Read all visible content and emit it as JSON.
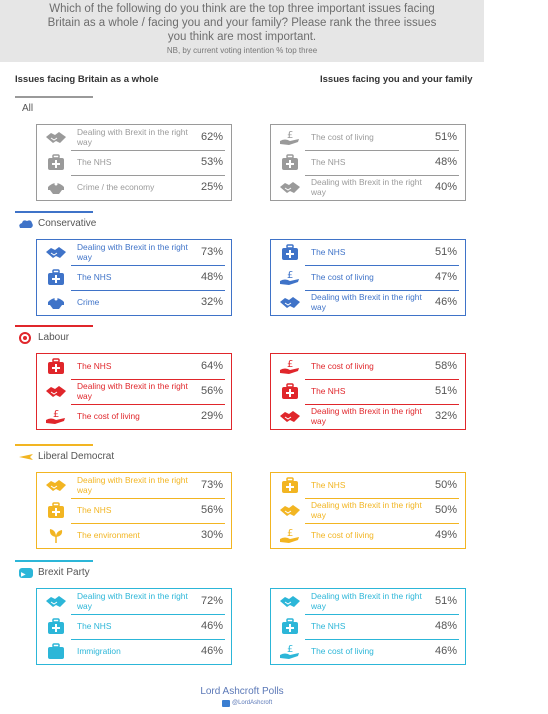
{
  "header": {
    "question_lines": [
      "Which of the following do you think are the top three important issues facing",
      "Britain as a whole / facing you and your family? Please rank the three issues",
      "you think are most important."
    ],
    "note": "NB, by current voting intention % top three"
  },
  "columns": {
    "left": "Issues facing Britain as a whole",
    "right": "Issues facing you and your family"
  },
  "footer": {
    "title": "Lord Ashcroft Polls",
    "handle": "@LordAshcroft"
  },
  "chart_data": {
    "type": "table",
    "groups": [
      {
        "name": "All",
        "color": "#9a9a9a",
        "britain": [
          {
            "issue": "Dealing with Brexit in the right way",
            "icon": "handshake-icon",
            "value": 62
          },
          {
            "issue": "The NHS",
            "icon": "medical-case-icon",
            "value": 53
          },
          {
            "issue": "Crime / the economy",
            "icon": "police-cap-icon",
            "value": 25
          }
        ],
        "family": [
          {
            "issue": "The cost of living",
            "icon": "pound-hand-icon",
            "value": 51
          },
          {
            "issue": "The NHS",
            "icon": "medical-case-icon",
            "value": 48
          },
          {
            "issue": "Dealing with Brexit in the right way",
            "icon": "handshake-icon",
            "value": 40
          }
        ]
      },
      {
        "name": "Conservative",
        "color": "#3f73c8",
        "britain": [
          {
            "issue": "Dealing with Brexit in the right way",
            "icon": "handshake-icon",
            "value": 73
          },
          {
            "issue": "The NHS",
            "icon": "medical-case-icon",
            "value": 48
          },
          {
            "issue": "Crime",
            "icon": "police-cap-icon",
            "value": 32
          }
        ],
        "family": [
          {
            "issue": "The NHS",
            "icon": "medical-case-icon",
            "value": 51
          },
          {
            "issue": "The cost of living",
            "icon": "pound-hand-icon",
            "value": 47
          },
          {
            "issue": "Dealing with Brexit in the right way",
            "icon": "handshake-icon",
            "value": 46
          }
        ]
      },
      {
        "name": "Labour",
        "color": "#e0262b",
        "britain": [
          {
            "issue": "The NHS",
            "icon": "medical-case-icon",
            "value": 64
          },
          {
            "issue": "Dealing with Brexit in the right way",
            "icon": "handshake-icon",
            "value": 56
          },
          {
            "issue": "The cost of living",
            "icon": "pound-hand-icon",
            "value": 29
          }
        ],
        "family": [
          {
            "issue": "The cost of living",
            "icon": "pound-hand-icon",
            "value": 58
          },
          {
            "issue": "The NHS",
            "icon": "medical-case-icon",
            "value": 51
          },
          {
            "issue": "Dealing with Brexit in the right way",
            "icon": "handshake-icon",
            "value": 32
          }
        ]
      },
      {
        "name": "Liberal Democrat",
        "color": "#f2b522",
        "britain": [
          {
            "issue": "Dealing with Brexit in the right way",
            "icon": "handshake-icon",
            "value": 73
          },
          {
            "issue": "The NHS",
            "icon": "medical-case-icon",
            "value": 56
          },
          {
            "issue": "The environment",
            "icon": "leaf-icon",
            "value": 30
          }
        ],
        "family": [
          {
            "issue": "The NHS",
            "icon": "medical-case-icon",
            "value": 50
          },
          {
            "issue": "Dealing with Brexit in the right way",
            "icon": "handshake-icon",
            "value": 50
          },
          {
            "issue": "The cost of living",
            "icon": "pound-hand-icon",
            "value": 49
          }
        ]
      },
      {
        "name": "Brexit Party",
        "color": "#2cb6d8",
        "britain": [
          {
            "issue": "Dealing with Brexit in the right way",
            "icon": "handshake-icon",
            "value": 72
          },
          {
            "issue": "The NHS",
            "icon": "medical-case-icon",
            "value": 46
          },
          {
            "issue": "Immigration",
            "icon": "suitcase-icon",
            "value": 46
          }
        ],
        "family": [
          {
            "issue": "Dealing with Brexit in the right way",
            "icon": "handshake-icon",
            "value": 51
          },
          {
            "issue": "The NHS",
            "icon": "medical-case-icon",
            "value": 48
          },
          {
            "issue": "The cost of living",
            "icon": "pound-hand-icon",
            "value": 46
          }
        ]
      }
    ]
  }
}
